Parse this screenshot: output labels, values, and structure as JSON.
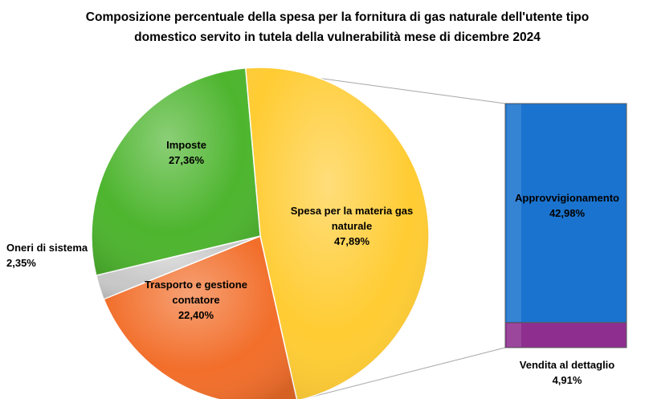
{
  "chart_data": {
    "type": "pie",
    "title": "Composizione percentuale della spesa per la fornitura di gas naturale dell'utente tipo domestico servito in tutela della vulnerabilità mese di dicembre 2024",
    "title_lines": [
      "Composizione percentuale della spesa per la fornitura di gas naturale dell'utente tipo",
      "domestico servito in tutela della vulnerabilità mese di dicembre 2024"
    ],
    "slices": [
      {
        "label_lines": [
          "Spesa per la materia gas",
          "naturale"
        ],
        "label": "Spesa per la materia gas naturale",
        "value": 47.89,
        "value_text": "47,89%",
        "color": "#FFCC33"
      },
      {
        "label_lines": [
          "Trasporto e gestione",
          "contatore"
        ],
        "label": "Trasporto e gestione contatore",
        "value": 22.4,
        "value_text": "22,40%",
        "color": "#F26E2A"
      },
      {
        "label_lines": [
          "Oneri di sistema"
        ],
        "label": "Oneri di sistema",
        "value": 2.35,
        "value_text": "2,35%",
        "color": "#C8C8C8"
      },
      {
        "label_lines": [
          "Imposte"
        ],
        "label": "Imposte",
        "value": 27.36,
        "value_text": "27,36%",
        "color": "#4DB52E"
      }
    ],
    "breakdown": {
      "of": "Spesa per la materia gas naturale",
      "type": "stacked-bar",
      "segments": [
        {
          "label": "Approvvigionamento",
          "value": 42.98,
          "value_text": "42,98%",
          "color": "#1A73CE"
        },
        {
          "label": "Vendita al dettaglio",
          "value": 4.91,
          "value_text": "4,91%",
          "color": "#8E2F8F"
        }
      ]
    }
  }
}
